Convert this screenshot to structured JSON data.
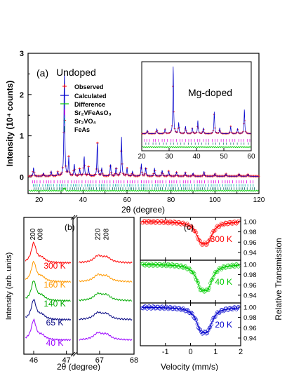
{
  "colors": {
    "observed": "#ff0000",
    "calculated": "#0000cc",
    "difference": "#00cc00",
    "phase1": "#e000e0",
    "phase2": "#00aaaa",
    "phase3": "#006666",
    "axis": "#000000"
  },
  "chart_data": [
    {
      "panel": "(a)",
      "type": "line",
      "annotation": "Undoped",
      "xlabel": "2θ (degree)",
      "ylabel": "Intensity (10⁴ counts)",
      "xlim": [
        15,
        120
      ],
      "ylim": [
        -0.4,
        3
      ],
      "xticks": [
        "20",
        "40",
        "60",
        "80",
        "100",
        "120"
      ],
      "yticks": [
        "0",
        "1",
        "2",
        "3"
      ],
      "legend": [
        "Observed",
        "Calculated",
        "Difference",
        "Sr₂VFeAsO₃",
        "Sr₂VO₄",
        "FeAs"
      ],
      "legend_position": "center",
      "peaks": [
        {
          "x": 17.5,
          "y": 0.22
        },
        {
          "x": 22.0,
          "y": 0.08
        },
        {
          "x": 25.5,
          "y": 0.12
        },
        {
          "x": 28.5,
          "y": 0.1
        },
        {
          "x": 31.5,
          "y": 2.7
        },
        {
          "x": 33.5,
          "y": 0.45
        },
        {
          "x": 36.0,
          "y": 0.3
        },
        {
          "x": 38.5,
          "y": 0.18
        },
        {
          "x": 40.5,
          "y": 0.5
        },
        {
          "x": 42.5,
          "y": 0.22
        },
        {
          "x": 46.5,
          "y": 0.85
        },
        {
          "x": 48.5,
          "y": 0.2
        },
        {
          "x": 52.5,
          "y": 0.3
        },
        {
          "x": 55.0,
          "y": 0.22
        },
        {
          "x": 57.5,
          "y": 0.95
        },
        {
          "x": 60.0,
          "y": 0.2
        },
        {
          "x": 62.5,
          "y": 0.12
        },
        {
          "x": 66.5,
          "y": 0.3
        },
        {
          "x": 68.5,
          "y": 0.22
        },
        {
          "x": 72.5,
          "y": 0.2
        },
        {
          "x": 76.0,
          "y": 0.15
        },
        {
          "x": 79.0,
          "y": 0.13
        },
        {
          "x": 82.5,
          "y": 0.1
        },
        {
          "x": 86.5,
          "y": 0.1
        },
        {
          "x": 90.0,
          "y": 0.08
        },
        {
          "x": 95.0,
          "y": 0.12
        },
        {
          "x": 100.0,
          "y": 0.07
        },
        {
          "x": 105.0,
          "y": 0.06
        },
        {
          "x": 111.0,
          "y": 0.06
        },
        {
          "x": 115.0,
          "y": 0.05
        }
      ],
      "inset": {
        "annotation": "Mg-doped",
        "xlim": [
          20,
          60
        ],
        "ylim": [
          -0.2,
          1.0
        ],
        "xticks": [
          "20",
          "30",
          "40",
          "50",
          "60"
        ],
        "peaks": [
          {
            "x": 22.0,
            "y": 0.05
          },
          {
            "x": 25.5,
            "y": 0.07
          },
          {
            "x": 28.5,
            "y": 0.06
          },
          {
            "x": 31.5,
            "y": 0.92
          },
          {
            "x": 33.5,
            "y": 0.15
          },
          {
            "x": 36.0,
            "y": 0.1
          },
          {
            "x": 38.5,
            "y": 0.08
          },
          {
            "x": 40.5,
            "y": 0.18
          },
          {
            "x": 42.5,
            "y": 0.08
          },
          {
            "x": 46.5,
            "y": 0.3
          },
          {
            "x": 48.5,
            "y": 0.08
          },
          {
            "x": 52.5,
            "y": 0.1
          },
          {
            "x": 55.0,
            "y": 0.07
          },
          {
            "x": 57.5,
            "y": 0.33
          }
        ]
      }
    },
    {
      "panel": "(b)",
      "type": "line",
      "xlabel": "2θ (degree)",
      "ylabel": "Intensity (arb. units)",
      "xticks": [
        "46",
        "47",
        "67",
        "68"
      ],
      "peak_labels": [
        "200",
        "008",
        "220",
        "208"
      ],
      "series": [
        {
          "name": "300 K",
          "color": "#ff0000"
        },
        {
          "name": "160 K",
          "color": "#ff9900"
        },
        {
          "name": "140 K",
          "color": "#00aa00"
        },
        {
          "name": "65 K",
          "color": "#000080"
        },
        {
          "name": "40 K",
          "color": "#9900ff"
        }
      ]
    },
    {
      "panel": "(c)",
      "type": "scatter",
      "xlabel": "Velocity (mm/s)",
      "ylabel": "Relative Transmission",
      "xlim": [
        -2,
        2
      ],
      "ylim": [
        0.925,
        1.008
      ],
      "xticks": [
        "-1",
        "0",
        "1",
        "2"
      ],
      "yticks": [
        "0.94",
        "0.96",
        "0.98",
        "1.00"
      ],
      "series": [
        {
          "name": "300 K",
          "color": "#ff0000",
          "min": 0.945,
          "center": 0.55,
          "split": 0.28
        },
        {
          "name": "40 K",
          "color": "#00cc00",
          "min": 0.935,
          "center": 0.55,
          "split": 0.28
        },
        {
          "name": "20 K",
          "color": "#0000cc",
          "min": 0.937,
          "center": 0.55,
          "split": 0.28
        }
      ]
    }
  ]
}
